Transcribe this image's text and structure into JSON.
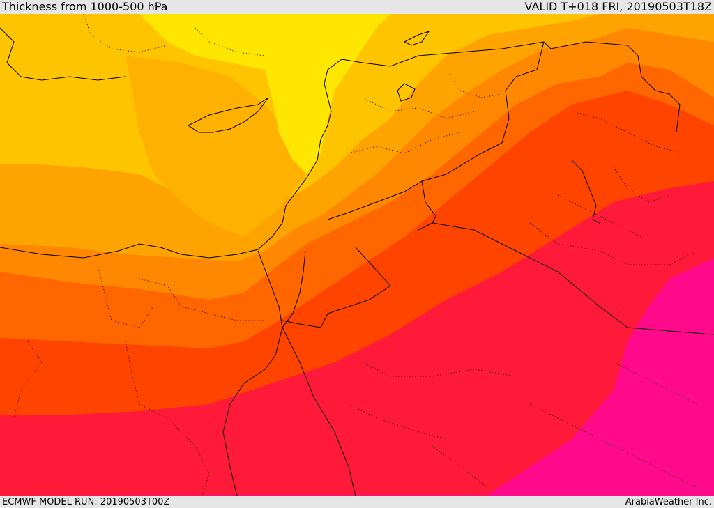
{
  "header": {
    "title": "Thickness from 1000-500 hPa",
    "valid": "VALID T+018 FRI, 20190503T18Z"
  },
  "footer": {
    "model_run": "ECMWF MODEL RUN: 20190503T00Z",
    "credit": "ArabiaWeather Inc."
  },
  "map": {
    "product": "thickness-1000-500-hpa",
    "palette": {
      "band_1": "#ffe600",
      "band_2": "#ffc400",
      "band_3": "#ffa300",
      "band_4": "#ff8800",
      "band_5": "#ff6600",
      "band_6": "#ff4400",
      "band_7": "#ff1a3a",
      "band_8": "#ff0066",
      "band_9": "#ff0a8a",
      "coastline": "#000000",
      "borders": "#000000"
    }
  }
}
